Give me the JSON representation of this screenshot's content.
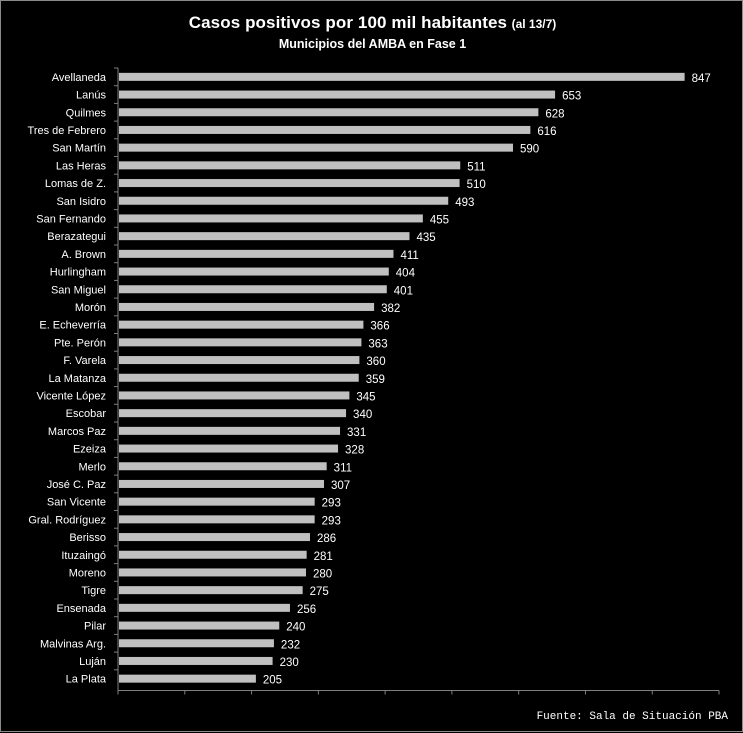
{
  "title": {
    "main": "Casos positivos por 100 mil habitantes",
    "note": "(al 13/7)",
    "subtitle": "Municipios del AMBA en Fase 1"
  },
  "source": "Fuente: Sala de Situación PBA",
  "colors": {
    "background": "#000000",
    "bar": "#c0c0c0",
    "text": "#ffffff",
    "axis": "#808080"
  },
  "chart_data": {
    "type": "bar",
    "orientation": "horizontal",
    "title": "Casos positivos por 100 mil habitantes (al 13/7)",
    "subtitle": "Municipios del AMBA en Fase 1",
    "xlabel": "",
    "ylabel": "",
    "xlim": [
      0,
      900
    ],
    "grid": false,
    "legend": "none",
    "categories": [
      "Avellaneda",
      "Lanús",
      "Quilmes",
      "Tres de Febrero",
      "San Martín",
      "Las Heras",
      "Lomas de Z.",
      "San Isidro",
      "San Fernando",
      "Berazategui",
      "A. Brown",
      "Hurlingham",
      "San Miguel",
      "Morón",
      "E. Echeverría",
      "Pte. Perón",
      "F. Varela",
      "La Matanza",
      "Vicente López",
      "Escobar",
      "Marcos Paz",
      "Ezeiza",
      "Merlo",
      "José C. Paz",
      "San Vicente",
      "Gral. Rodríguez",
      "Berisso",
      "Ituzaingó",
      "Moreno",
      "Tigre",
      "Ensenada",
      "Pilar",
      "Malvinas Arg.",
      "Luján",
      "La Plata"
    ],
    "values": [
      847,
      653,
      628,
      616,
      590,
      511,
      510,
      493,
      455,
      435,
      411,
      404,
      401,
      382,
      366,
      363,
      360,
      359,
      345,
      340,
      331,
      328,
      311,
      307,
      293,
      293,
      286,
      281,
      280,
      275,
      256,
      240,
      232,
      230,
      205
    ]
  }
}
